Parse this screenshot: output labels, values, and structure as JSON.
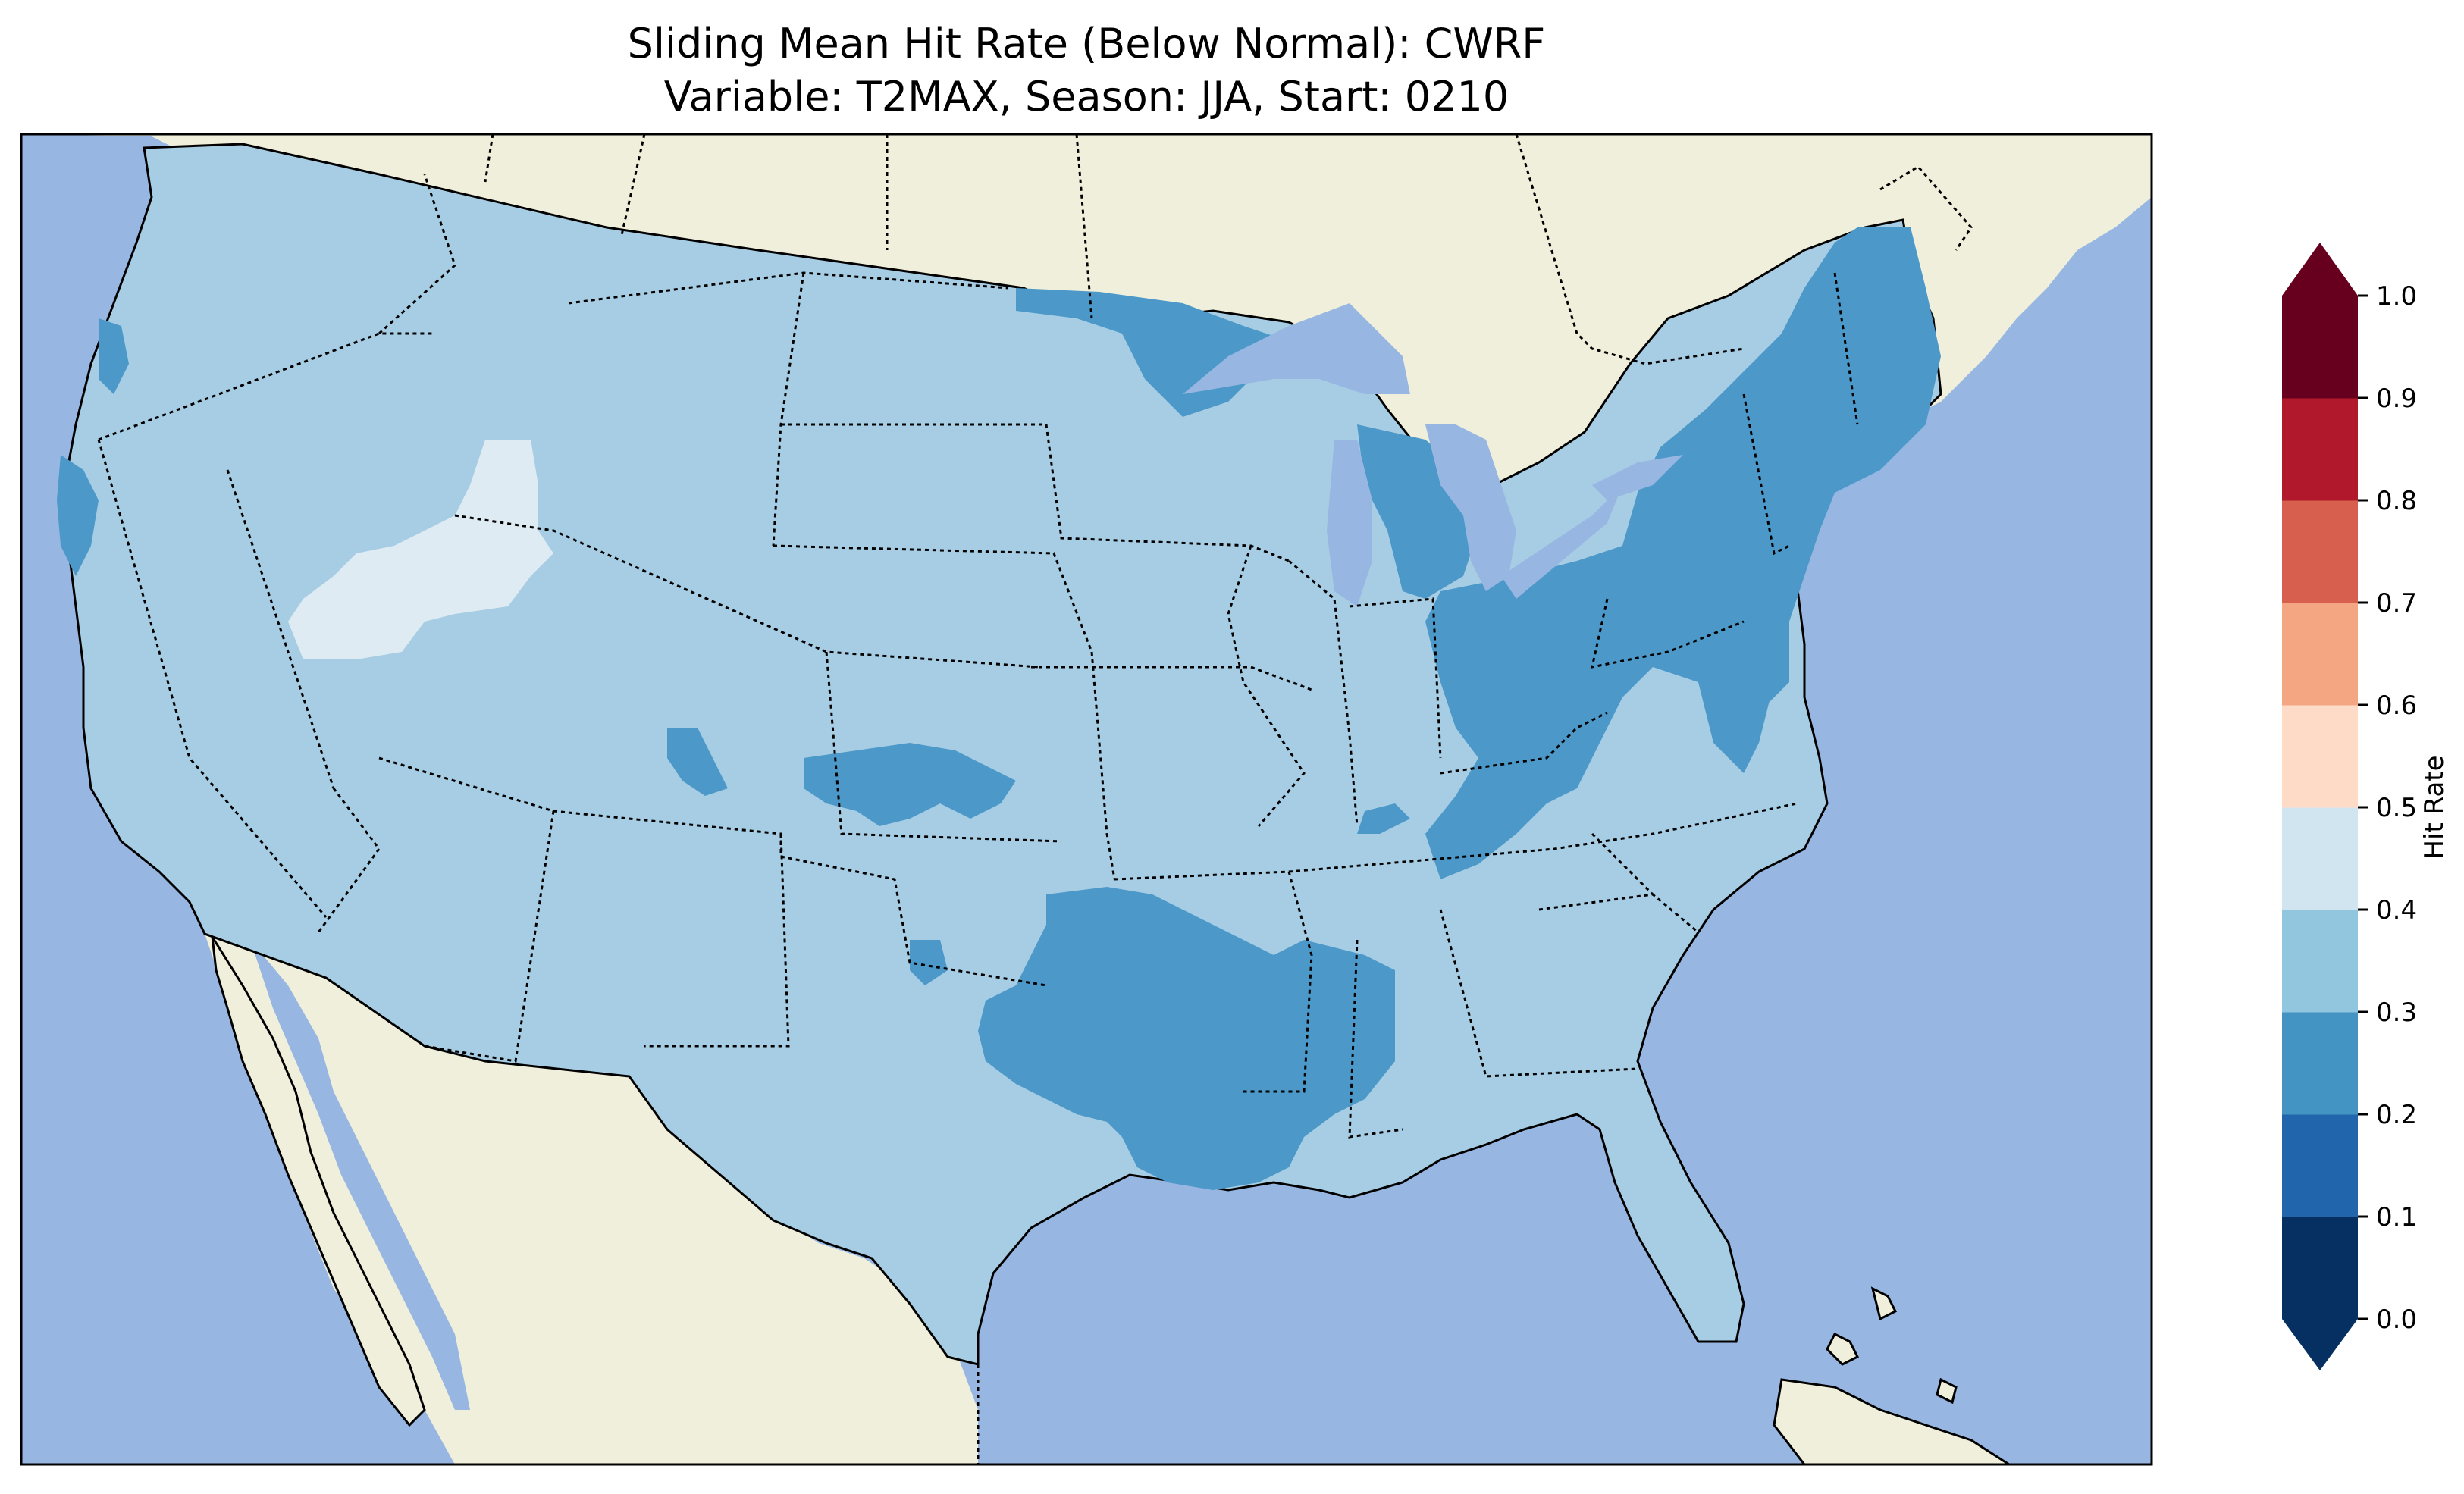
{
  "title": {
    "line1": "Sliding Mean Hit Rate (Below Normal): CWRF",
    "line2": "Variable: T2MAX, Season: JJA, Start: 0210"
  },
  "map": {
    "region": "Contiguous United States",
    "background_colors": {
      "ocean": "#97b6e1",
      "land": "#efefdb",
      "lakes": "#97b6e1"
    },
    "field_colors": {
      "0.2-0.3": "#4b98c9",
      "0.3-0.4": "#a6cde3",
      "0.4-0.5": "#dfebf3"
    }
  },
  "colorbar": {
    "label": "Hit Rate",
    "ticks": [
      "0.0",
      "0.1",
      "0.2",
      "0.3",
      "0.4",
      "0.5",
      "0.6",
      "0.7",
      "0.8",
      "0.9",
      "1.0"
    ],
    "colors": [
      "#053061",
      "#2166ac",
      "#4393c3",
      "#92c5de",
      "#d1e5f0",
      "#fddbc7",
      "#f4a582",
      "#d6604d",
      "#b2182b",
      "#67001f"
    ],
    "extend_low_color": "#053061",
    "extend_high_color": "#67001f"
  }
}
